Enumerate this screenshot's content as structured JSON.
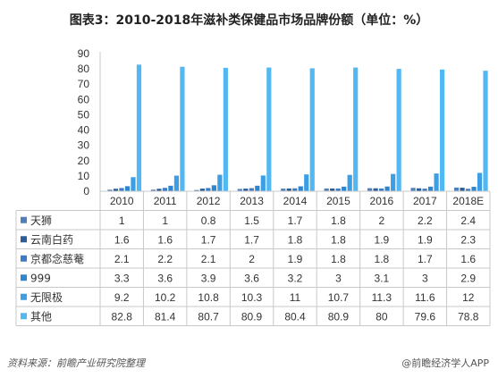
{
  "title": "图表3：2010-2018年滋补类保健品市场品牌份额（单位：%）",
  "source_left": "资料来源：前瞻产业研究院整理",
  "source_right": "@前瞻经济学人APP",
  "colors": {
    "series": [
      "#4f7fb8",
      "#2d5d95",
      "#3b7cc4",
      "#2f86cf",
      "#3d9ee3",
      "#53b8f1"
    ],
    "grid": "#c8c8c8",
    "axis_text": "#333333"
  },
  "chart_data": {
    "type": "bar",
    "title": "图表3：2010-2018年滋补类保健品市场品牌份额（单位：%）",
    "categories": [
      "2010",
      "2011",
      "2012",
      "2013",
      "2014",
      "2015",
      "2016",
      "2017",
      "2018E"
    ],
    "ylim": [
      0,
      90
    ],
    "yticks": [
      0,
      10,
      20,
      30,
      40,
      50,
      60,
      70,
      80,
      90
    ],
    "legend": "data-table",
    "series": [
      {
        "name": "天狮",
        "values": [
          "1",
          "1",
          "0.8",
          "1.5",
          "1.7",
          "1.8",
          "2",
          "2.2",
          "2.4"
        ]
      },
      {
        "name": "云南白药",
        "values": [
          "1.6",
          "1.6",
          "1.7",
          "1.7",
          "1.8",
          "1.8",
          "1.9",
          "1.9",
          "2.3"
        ]
      },
      {
        "name": "京都念慈菴",
        "values": [
          "2.1",
          "2.2",
          "2.1",
          "2",
          "1.9",
          "1.8",
          "1.8",
          "1.7",
          "1.6"
        ]
      },
      {
        "name": "999",
        "values": [
          "3.3",
          "3.6",
          "3.9",
          "3.6",
          "3.2",
          "3",
          "3.1",
          "3",
          "2.9"
        ]
      },
      {
        "name": "无限极",
        "values": [
          "9.2",
          "10.2",
          "10.8",
          "10.3",
          "11",
          "10.7",
          "11.3",
          "11.6",
          "12"
        ]
      },
      {
        "name": "其他",
        "values": [
          "82.8",
          "81.4",
          "80.7",
          "80.9",
          "80.4",
          "80.9",
          "80",
          "79.6",
          "78.8"
        ]
      }
    ]
  }
}
